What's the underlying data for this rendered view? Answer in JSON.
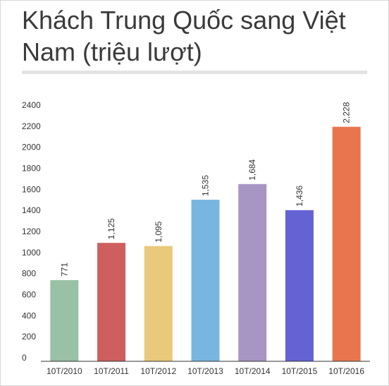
{
  "title": "Khách Trung Quốc sang Việt Nam (triệu lượt)",
  "chart_data": {
    "type": "bar",
    "title": "Khách Trung Quốc sang Việt Nam (triệu lượt)",
    "categories": [
      "10T/2010",
      "10T/2011",
      "10T/2012",
      "10T/2013",
      "10T/2014",
      "10T/2015",
      "10T/2016"
    ],
    "values": [
      771,
      1125,
      1095,
      1535,
      1684,
      1436,
      2228
    ],
    "data_labels": [
      "771",
      "1,125",
      "1,095",
      "1,535",
      "1,684",
      "1,436",
      "2,228"
    ],
    "bar_colors": [
      "#98c1a5",
      "#cd5f5f",
      "#e9c97a",
      "#78b6e0",
      "#a796c3",
      "#6563d4",
      "#e9754f"
    ],
    "yticks": [
      0,
      200,
      400,
      600,
      800,
      1000,
      1200,
      1400,
      1600,
      1800,
      2000,
      2200,
      2400
    ],
    "ylim": [
      0,
      2400
    ],
    "xlabel": "",
    "ylabel": "",
    "grid": false,
    "legend": "none"
  }
}
